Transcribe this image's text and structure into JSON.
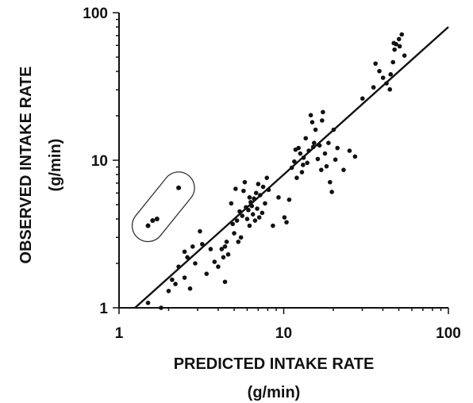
{
  "chart_data": {
    "type": "scatter",
    "title": "",
    "xlabel": "PREDICTED INTAKE RATE",
    "xlabel_unit": "(g/min)",
    "ylabel": "OBSERVED INTAKE RATE",
    "ylabel_unit": "(g/min)",
    "x_scale": "log",
    "y_scale": "log",
    "xlim": [
      1,
      100
    ],
    "ylim": [
      1,
      100
    ],
    "x_ticks": [
      {
        "value": 1,
        "label": "1"
      },
      {
        "value": 10,
        "label": "10"
      },
      {
        "value": 100,
        "label": "100"
      }
    ],
    "y_ticks": [
      {
        "value": 1,
        "label": "1"
      },
      {
        "value": 10,
        "label": "10"
      },
      {
        "value": 100,
        "label": "100"
      }
    ],
    "grid": false,
    "legend": "none",
    "colors": {
      "points": "#111111",
      "line": "#111111",
      "outline": "#333333"
    },
    "points": [
      [
        1.5,
        1.08
      ],
      [
        1.8,
        1.0
      ],
      [
        2.0,
        1.3
      ],
      [
        2.2,
        1.45
      ],
      [
        2.1,
        1.55
      ],
      [
        2.3,
        1.9
      ],
      [
        2.5,
        1.6
      ],
      [
        2.6,
        2.2
      ],
      [
        2.7,
        1.35
      ],
      [
        2.5,
        2.4
      ],
      [
        2.8,
        2.6
      ],
      [
        2.9,
        2.0
      ],
      [
        3.2,
        2.7
      ],
      [
        3.1,
        3.3
      ],
      [
        3.4,
        1.7
      ],
      [
        3.6,
        2.5
      ],
      [
        3.8,
        2.05
      ],
      [
        4.0,
        1.9
      ],
      [
        4.2,
        2.5
      ],
      [
        4.3,
        2.2
      ],
      [
        4.4,
        1.5
      ],
      [
        4.5,
        2.8
      ],
      [
        4.6,
        2.3
      ],
      [
        4.4,
        2.6
      ],
      [
        4.8,
        5.1
      ],
      [
        4.9,
        3.7
      ],
      [
        5.0,
        3.2
      ],
      [
        5.2,
        3.9
      ],
      [
        5.3,
        2.8
      ],
      [
        5.4,
        4.5
      ],
      [
        5.5,
        3.0
      ],
      [
        5.6,
        4.2
      ],
      [
        5.7,
        6.2
      ],
      [
        5.8,
        7.1
      ],
      [
        6.0,
        4.0
      ],
      [
        6.1,
        4.6
      ],
      [
        6.2,
        3.6
      ],
      [
        6.3,
        5.2
      ],
      [
        6.4,
        4.9
      ],
      [
        6.5,
        4.3
      ],
      [
        6.6,
        5.5
      ],
      [
        6.7,
        3.9
      ],
      [
        6.8,
        6.0
      ],
      [
        6.9,
        4.7
      ],
      [
        7.0,
        6.9
      ],
      [
        7.2,
        5.8
      ],
      [
        7.4,
        4.4
      ],
      [
        7.5,
        6.6
      ],
      [
        7.7,
        5.1
      ],
      [
        7.9,
        7.6
      ],
      [
        8.1,
        6.3
      ],
      [
        5.9,
        4.8
      ],
      [
        6.2,
        5.6
      ],
      [
        7.1,
        4.1
      ],
      [
        5.1,
        6.4
      ],
      [
        8.6,
        3.6
      ],
      [
        9.3,
        5.6
      ],
      [
        10.1,
        4.1
      ],
      [
        10.4,
        3.8
      ],
      [
        10.8,
        5.4
      ],
      [
        11.2,
        8.9
      ],
      [
        11.6,
        9.8
      ],
      [
        12.0,
        7.6
      ],
      [
        12.3,
        12.1
      ],
      [
        12.6,
        11.1
      ],
      [
        12.9,
        8.3
      ],
      [
        13.2,
        10.4
      ],
      [
        13.6,
        14.1
      ],
      [
        13.9,
        9.6
      ],
      [
        14.2,
        11.6
      ],
      [
        14.6,
        20.2
      ],
      [
        14.9,
        18.1
      ],
      [
        15.3,
        13.1
      ],
      [
        15.6,
        16.1
      ],
      [
        16.1,
        10.2
      ],
      [
        16.5,
        12.6
      ],
      [
        16.9,
        8.6
      ],
      [
        17.3,
        21.2
      ],
      [
        17.8,
        11.1
      ],
      [
        18.2,
        9.1
      ],
      [
        18.7,
        13.1
      ],
      [
        19.1,
        7.1
      ],
      [
        19.6,
        6.1
      ],
      [
        20.1,
        16.1
      ],
      [
        20.6,
        10.1
      ],
      [
        13.1,
        9.3
      ],
      [
        15.1,
        12.3
      ],
      [
        17.1,
        18.6
      ],
      [
        11.8,
        11.8
      ],
      [
        21.2,
        12.1
      ],
      [
        23.1,
        8.6
      ],
      [
        25.1,
        11.6
      ],
      [
        27.1,
        10.6
      ],
      [
        30.1,
        26.2
      ],
      [
        35.1,
        31.2
      ],
      [
        38.1,
        40.2
      ],
      [
        40.1,
        36.2
      ],
      [
        42.1,
        33.2
      ],
      [
        44.1,
        30.2
      ],
      [
        46.1,
        46.2
      ],
      [
        48.1,
        61.2
      ],
      [
        50.1,
        66.2
      ],
      [
        52.1,
        71.2
      ],
      [
        54.1,
        51.2
      ],
      [
        47.1,
        56.2
      ],
      [
        44.6,
        38.2
      ],
      [
        36.1,
        45.2
      ],
      [
        50.6,
        59.2
      ],
      [
        46.6,
        62.2
      ]
    ],
    "circled_points": [
      [
        1.5,
        3.6
      ],
      [
        1.6,
        3.9
      ],
      [
        1.7,
        4.0
      ],
      [
        2.3,
        6.5
      ]
    ],
    "fit_line": {
      "x": [
        1.25,
        100
      ],
      "y": [
        1.0,
        80.0
      ]
    }
  }
}
